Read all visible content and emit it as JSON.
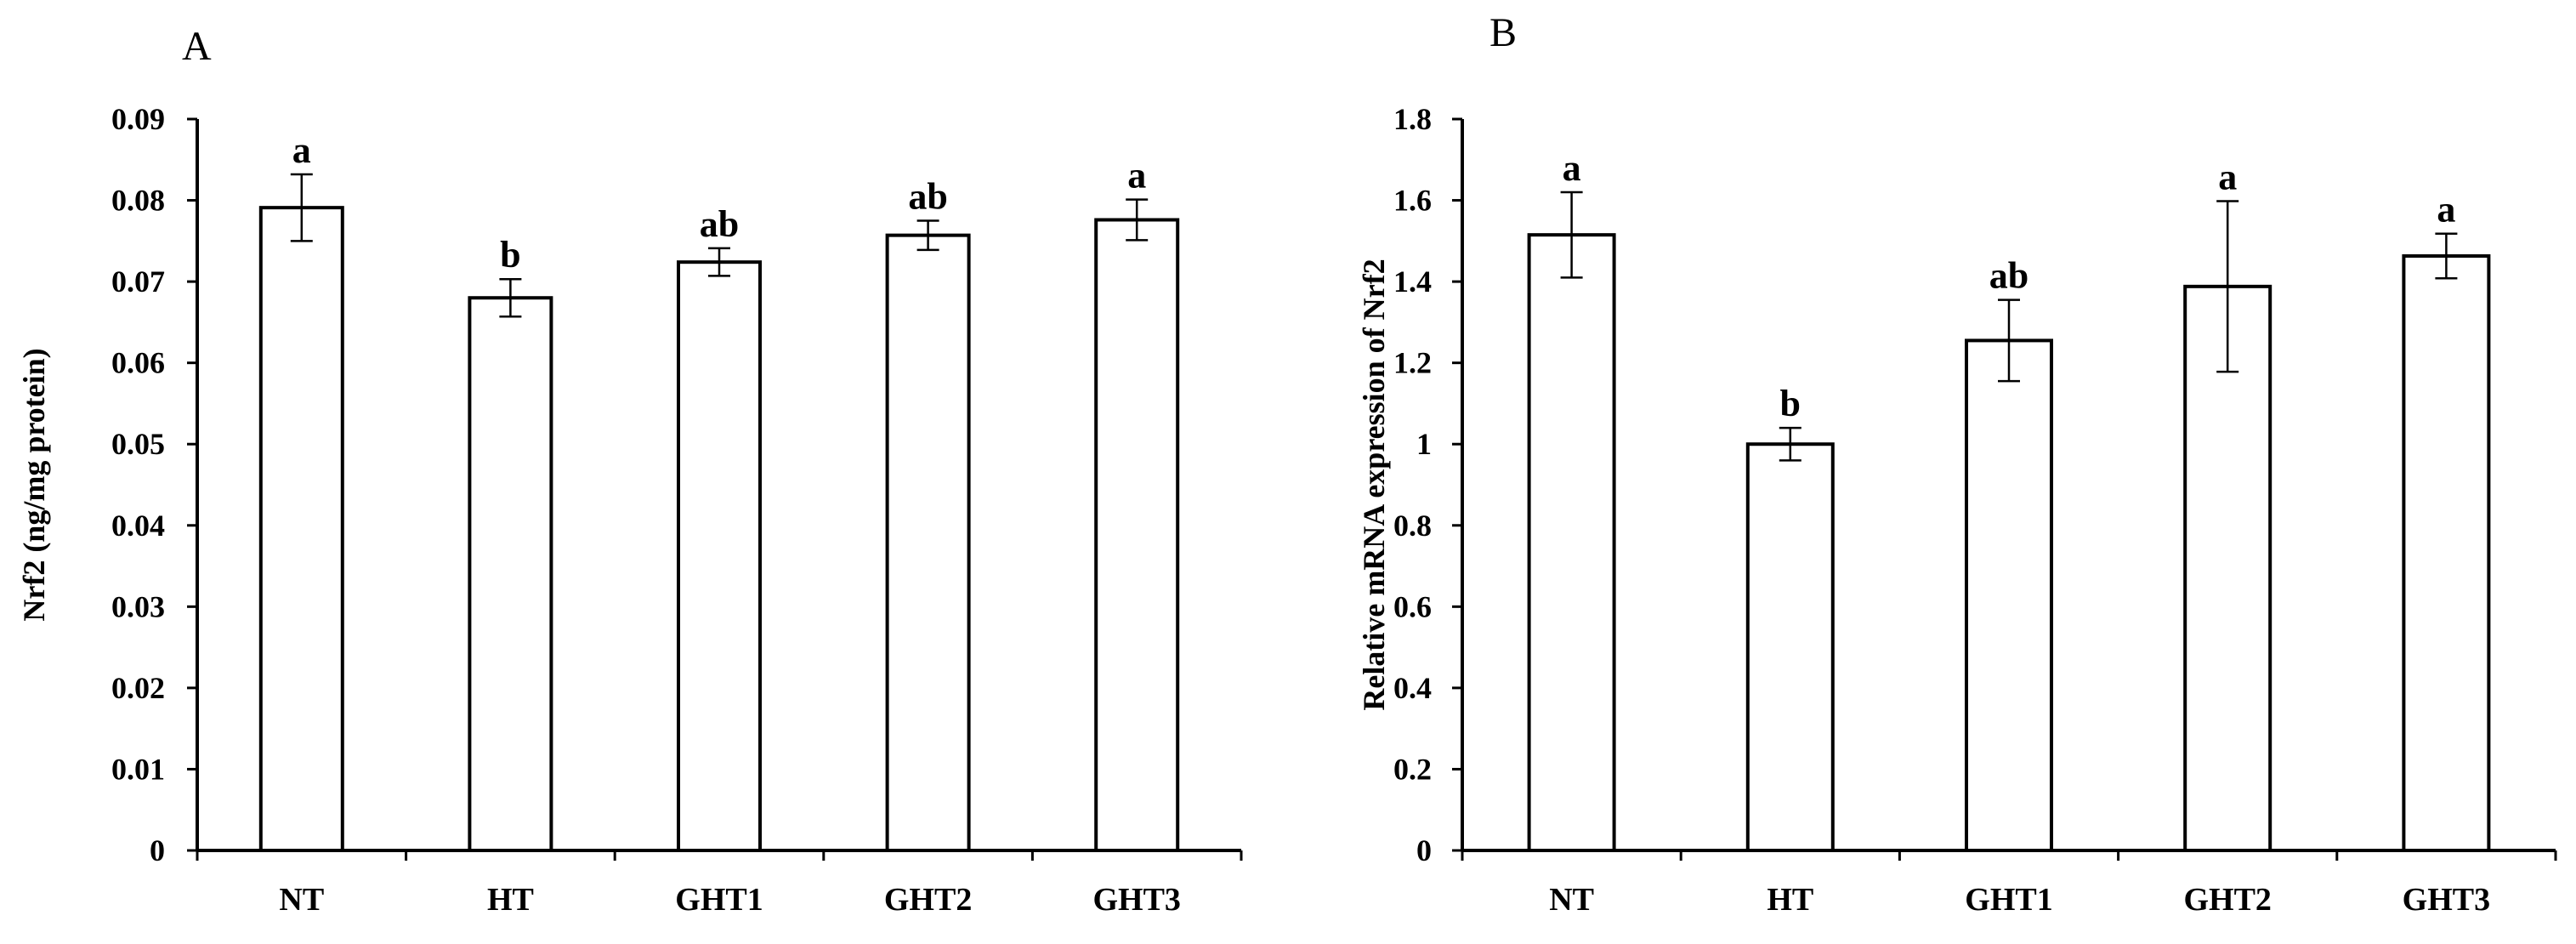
{
  "chart_data": [
    {
      "type": "bar",
      "panel_label": "A",
      "categories": [
        "NT",
        "HT",
        "GHT1",
        "GHT2",
        "GHT3"
      ],
      "values": [
        0.0791,
        0.068,
        0.0724,
        0.0757,
        0.0776
      ],
      "errors": [
        0.0041,
        0.0023,
        0.0017,
        0.0018,
        0.0025
      ],
      "significance": [
        "a",
        "b",
        "ab",
        "ab",
        "a"
      ],
      "ylabel": "Nrf2 (ng/mg protein)",
      "xlabel": "",
      "ylim": [
        0,
        0.09
      ],
      "yticks": [
        0,
        0.01,
        0.02,
        0.03,
        0.04,
        0.05,
        0.06,
        0.07,
        0.08,
        0.09
      ],
      "ytick_labels": [
        "0",
        "0.01",
        "0.02",
        "0.03",
        "0.04",
        "0.05",
        "0.06",
        "0.07",
        "0.08",
        "0.09"
      ],
      "grid": false,
      "bar_fill": "#ffffff",
      "bar_stroke": "#000000"
    },
    {
      "type": "bar",
      "panel_label": "B",
      "categories": [
        "NT",
        "HT",
        "GHT1",
        "GHT2",
        "GHT3"
      ],
      "values": [
        1.515,
        1.0,
        1.255,
        1.388,
        1.463
      ],
      "errors": [
        0.105,
        0.04,
        0.1,
        0.21,
        0.055
      ],
      "significance": [
        "a",
        "b",
        "ab",
        "a",
        "a"
      ],
      "ylabel": "Relative mRNA expression of Nrf2",
      "xlabel": "",
      "ylim": [
        0,
        1.8
      ],
      "yticks": [
        0,
        0.2,
        0.4,
        0.6,
        0.8,
        1.0,
        1.2,
        1.4,
        1.6,
        1.8
      ],
      "ytick_labels": [
        "0",
        "0.2",
        "0.4",
        "0.6",
        "0.8",
        "1",
        "1.2",
        "1.4",
        "1.6",
        "1.8"
      ],
      "grid": false,
      "bar_fill": "#ffffff",
      "bar_stroke": "#000000"
    }
  ]
}
